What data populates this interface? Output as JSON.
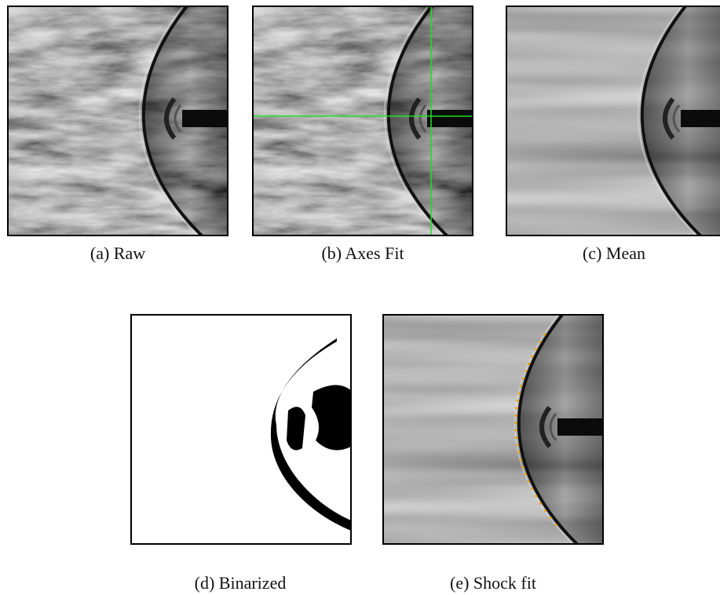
{
  "captions": [
    "(a) Raw",
    "(b) Axes Fit",
    "(c) Mean",
    "(d) Binarized",
    "(e) Shock fit"
  ]
}
